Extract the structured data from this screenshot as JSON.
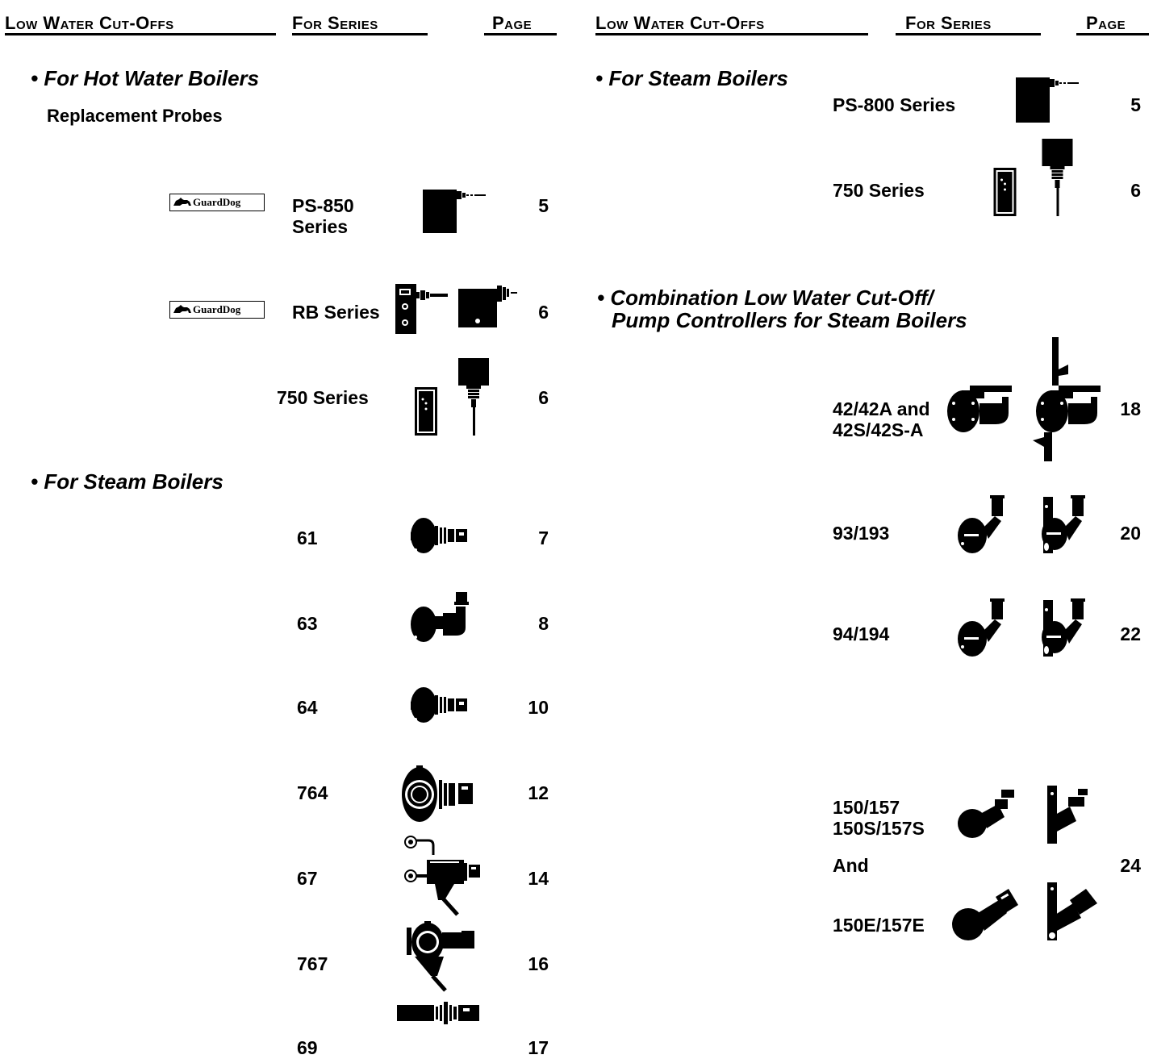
{
  "left_header": {
    "title": "Low Water Cut-Offs",
    "series": "For Series",
    "page": "Page"
  },
  "right_header": {
    "title": "Low Water Cut-Offs",
    "series": "For Series",
    "page": "Page"
  },
  "left": {
    "hot_water": {
      "heading": "• For Hot Water Boilers",
      "subheading": "Replacement Probes",
      "items": [
        {
          "brand": "GuardDog",
          "series_line1": "PS-850",
          "series_line2": "Series",
          "page": "5",
          "icon": "probe-box-icon"
        },
        {
          "brand": "GuardDog",
          "series": "RB Series",
          "page": "6",
          "icon": "rb-probe-icon"
        },
        {
          "series": "750 Series",
          "page": "6",
          "icon": "750-probe-icon"
        }
      ]
    },
    "steam": {
      "heading": "• For Steam Boilers",
      "items": [
        {
          "series": "61",
          "page": "7",
          "icon": "float-control-icon"
        },
        {
          "series": "63",
          "page": "8",
          "icon": "float-elbow-icon"
        },
        {
          "series": "64",
          "page": "10",
          "icon": "float-control-icon"
        },
        {
          "series": "764",
          "page": "12",
          "icon": "float-large-icon"
        },
        {
          "series": "67",
          "page": "14",
          "icon": "float-valve-icon"
        },
        {
          "series": "767",
          "page": "16",
          "icon": "float-drain-icon"
        },
        {
          "series": "69",
          "page": "17",
          "icon": "inline-cutoff-icon"
        }
      ]
    }
  },
  "right": {
    "steam": {
      "heading": "• For Steam Boilers",
      "items": [
        {
          "series": "PS-800 Series",
          "page": "5",
          "icon": "probe-box-icon"
        },
        {
          "series": "750 Series",
          "page": "6",
          "icon": "750-probe-icon"
        }
      ]
    },
    "combination": {
      "heading_line1": "• Combination Low Water Cut-Off/",
      "heading_line2": "Pump Controllers for Steam Boilers",
      "items": [
        {
          "series_line1": "42/42A and",
          "series_line2": "42S/42S-A",
          "page": "18",
          "icon": "pump-controller-icon"
        },
        {
          "series": "93/193",
          "page": "20",
          "icon": "pump-controller-icon"
        },
        {
          "series": "94/194",
          "page": "22",
          "icon": "pump-controller-icon"
        },
        {
          "series_line1": "150/157",
          "series_line2": "150S/157S",
          "connector": "And",
          "series_line3": "150E/157E",
          "page": "24",
          "icon": "pump-controller-icon"
        }
      ]
    }
  }
}
